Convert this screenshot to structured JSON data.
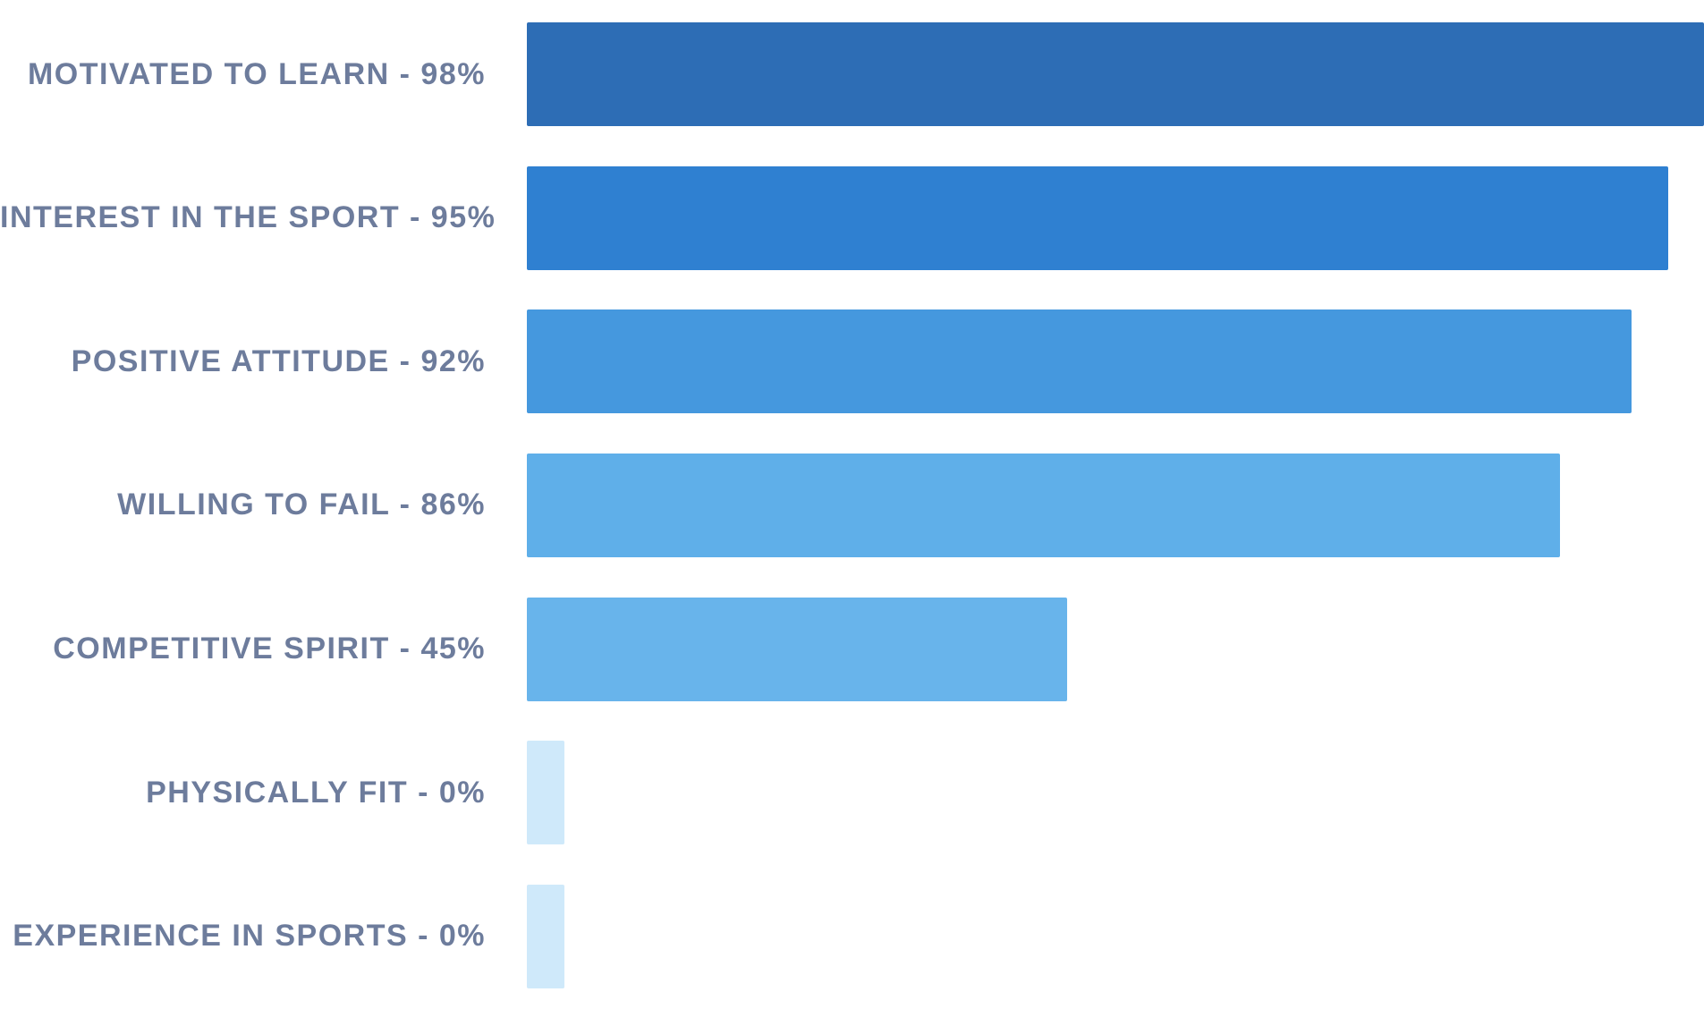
{
  "chart_data": {
    "type": "bar",
    "orientation": "horizontal",
    "title": "",
    "xlabel": "",
    "ylabel": "",
    "xlim": [
      0,
      98
    ],
    "grid": false,
    "legend": false,
    "value_suffix": "%",
    "categories": [
      "MOTIVATED TO LEARN",
      "INTEREST IN THE SPORT",
      "POSITIVE ATTITUDE",
      "WILLING TO FAIL",
      "COMPETITIVE SPIRIT",
      "PHYSICALLY FIT",
      "EXPERIENCE IN SPORTS"
    ],
    "values": [
      98,
      95,
      92,
      86,
      45,
      0,
      0
    ],
    "bar_colors": [
      "#2d6db5",
      "#2f80d1",
      "#4598de",
      "#5fafe9",
      "#68b4eb",
      "#cfe9fa",
      "#cfe9fa"
    ],
    "label_color": "#6d7c9c",
    "rows": [
      {
        "label": "MOTIVATED TO LEARN",
        "value": 98,
        "display": "MOTIVATED TO LEARN - 98%"
      },
      {
        "label": "INTEREST IN THE SPORT",
        "value": 95,
        "display": "INTEREST IN THE SPORT - 95%"
      },
      {
        "label": "POSITIVE ATTITUDE",
        "value": 92,
        "display": "POSITIVE ATTITUDE - 92%"
      },
      {
        "label": "WILLING TO FAIL",
        "value": 86,
        "display": "WILLING TO FAIL - 86%"
      },
      {
        "label": "COMPETITIVE SPIRIT",
        "value": 45,
        "display": "COMPETITIVE SPIRIT - 45%"
      },
      {
        "label": "PHYSICALLY FIT",
        "value": 0,
        "display": "PHYSICALLY FIT - 0%"
      },
      {
        "label": "EXPERIENCE IN SPORTS",
        "value": 0,
        "display": "EXPERIENCE IN SPORTS - 0%"
      }
    ]
  }
}
